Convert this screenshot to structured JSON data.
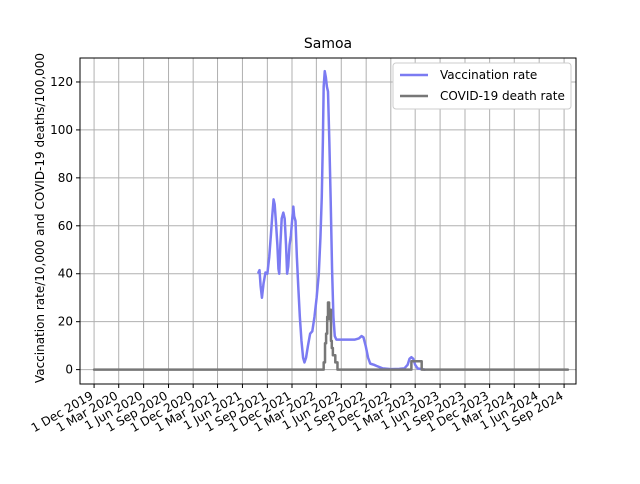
{
  "chart_data": {
    "type": "line",
    "title": "Samoa",
    "xlabel": "",
    "ylabel": "Vaccination rate/10,000 and COVID-19 deaths/100,000",
    "x_type": "date",
    "xlim": [
      "2019-10-10",
      "2024-10-15"
    ],
    "ylim": [
      -6,
      130
    ],
    "yticks": [
      0,
      20,
      40,
      60,
      80,
      100,
      120
    ],
    "xticks": [
      {
        "date": "2019-12-01",
        "label": "1 Dec 2019"
      },
      {
        "date": "2020-03-01",
        "label": "1 Mar 2020"
      },
      {
        "date": "2020-06-01",
        "label": "1 Jun 2020"
      },
      {
        "date": "2020-09-01",
        "label": "1 Sep 2020"
      },
      {
        "date": "2020-12-01",
        "label": "1 Dec 2020"
      },
      {
        "date": "2021-03-01",
        "label": "1 Mar 2021"
      },
      {
        "date": "2021-06-01",
        "label": "1 Jun 2021"
      },
      {
        "date": "2021-09-01",
        "label": "1 Sep 2021"
      },
      {
        "date": "2021-12-01",
        "label": "1 Dec 2021"
      },
      {
        "date": "2022-03-01",
        "label": "1 Mar 2022"
      },
      {
        "date": "2022-06-01",
        "label": "1 Jun 2022"
      },
      {
        "date": "2022-09-01",
        "label": "1 Sep 2022"
      },
      {
        "date": "2022-12-01",
        "label": "1 Dec 2022"
      },
      {
        "date": "2023-03-01",
        "label": "1 Mar 2023"
      },
      {
        "date": "2023-06-01",
        "label": "1 Jun 2023"
      },
      {
        "date": "2023-09-01",
        "label": "1 Sep 2023"
      },
      {
        "date": "2023-12-01",
        "label": "1 Dec 2023"
      },
      {
        "date": "2024-03-01",
        "label": "1 Mar 2024"
      },
      {
        "date": "2024-06-01",
        "label": "1 Jun 2024"
      },
      {
        "date": "2024-09-01",
        "label": "1 Sep 2024"
      }
    ],
    "grid": true,
    "legend_position": "top-right",
    "series": [
      {
        "name": "Vaccination rate",
        "color": "#7b7bf2",
        "points": [
          [
            "2021-07-30",
            40.5
          ],
          [
            "2021-08-03",
            41.5
          ],
          [
            "2021-08-07",
            35
          ],
          [
            "2021-08-12",
            30
          ],
          [
            "2021-08-18",
            36
          ],
          [
            "2021-08-25",
            40.5
          ],
          [
            "2021-09-01",
            40
          ],
          [
            "2021-09-08",
            47
          ],
          [
            "2021-09-14",
            56
          ],
          [
            "2021-09-19",
            64
          ],
          [
            "2021-09-24",
            71
          ],
          [
            "2021-09-28",
            69
          ],
          [
            "2021-10-03",
            61
          ],
          [
            "2021-10-08",
            52
          ],
          [
            "2021-10-12",
            42
          ],
          [
            "2021-10-15",
            40
          ],
          [
            "2021-10-19",
            52
          ],
          [
            "2021-10-24",
            63
          ],
          [
            "2021-10-30",
            65.5
          ],
          [
            "2021-11-04",
            63
          ],
          [
            "2021-11-09",
            52
          ],
          [
            "2021-11-13",
            40
          ],
          [
            "2021-11-17",
            43
          ],
          [
            "2021-11-22",
            52
          ],
          [
            "2021-11-27",
            56
          ],
          [
            "2021-12-02",
            63
          ],
          [
            "2021-12-06",
            68
          ],
          [
            "2021-12-09",
            64
          ],
          [
            "2021-12-14",
            62
          ],
          [
            "2021-12-19",
            47
          ],
          [
            "2021-12-24",
            35
          ],
          [
            "2021-12-30",
            22
          ],
          [
            "2022-01-05",
            12
          ],
          [
            "2022-01-11",
            5
          ],
          [
            "2022-01-16",
            3
          ],
          [
            "2022-01-22",
            5
          ],
          [
            "2022-01-29",
            10
          ],
          [
            "2022-02-06",
            15
          ],
          [
            "2022-02-14",
            16
          ],
          [
            "2022-02-22",
            22
          ],
          [
            "2022-03-02",
            30
          ],
          [
            "2022-03-10",
            40
          ],
          [
            "2022-03-16",
            55
          ],
          [
            "2022-03-21",
            72
          ],
          [
            "2022-03-25",
            95
          ],
          [
            "2022-03-28",
            118
          ],
          [
            "2022-04-01",
            124.5
          ],
          [
            "2022-04-05",
            122
          ],
          [
            "2022-04-09",
            118
          ],
          [
            "2022-04-13",
            116
          ],
          [
            "2022-04-18",
            95
          ],
          [
            "2022-04-23",
            70
          ],
          [
            "2022-04-28",
            42
          ],
          [
            "2022-05-03",
            22
          ],
          [
            "2022-05-08",
            14
          ],
          [
            "2022-05-14",
            12.5
          ],
          [
            "2022-05-24",
            12.5
          ],
          [
            "2022-06-10",
            12.5
          ],
          [
            "2022-07-01",
            12.5
          ],
          [
            "2022-07-20",
            12.5
          ],
          [
            "2022-08-05",
            13
          ],
          [
            "2022-08-15",
            14
          ],
          [
            "2022-08-22",
            13.5
          ],
          [
            "2022-08-30",
            10
          ],
          [
            "2022-09-08",
            5
          ],
          [
            "2022-09-16",
            2.5
          ],
          [
            "2022-09-30",
            2
          ],
          [
            "2022-10-10",
            1.5
          ],
          [
            "2022-11-01",
            0.5
          ],
          [
            "2022-12-01",
            0.2
          ],
          [
            "2023-01-01",
            0.3
          ],
          [
            "2023-01-20",
            0.5
          ],
          [
            "2023-02-01",
            2
          ],
          [
            "2023-02-08",
            4.5
          ],
          [
            "2023-02-15",
            5.2
          ],
          [
            "2023-02-22",
            4.5
          ],
          [
            "2023-03-01",
            2
          ],
          [
            "2023-03-10",
            0.5
          ],
          [
            "2023-04-05",
            0
          ]
        ]
      },
      {
        "name": "COVID-19 death rate",
        "color": "#777777",
        "points": [
          [
            "2019-12-01",
            0
          ],
          [
            "2022-03-28",
            0
          ],
          [
            "2022-03-28",
            3
          ],
          [
            "2022-04-02",
            3
          ],
          [
            "2022-04-02",
            11
          ],
          [
            "2022-04-06",
            11
          ],
          [
            "2022-04-06",
            15
          ],
          [
            "2022-04-10",
            15
          ],
          [
            "2022-04-10",
            22
          ],
          [
            "2022-04-13",
            22
          ],
          [
            "2022-04-13",
            28
          ],
          [
            "2022-04-17",
            28
          ],
          [
            "2022-04-17",
            21
          ],
          [
            "2022-04-20",
            21
          ],
          [
            "2022-04-20",
            25
          ],
          [
            "2022-04-24",
            25
          ],
          [
            "2022-04-24",
            12
          ],
          [
            "2022-04-27",
            12
          ],
          [
            "2022-04-27",
            9
          ],
          [
            "2022-05-01",
            9
          ],
          [
            "2022-05-01",
            6
          ],
          [
            "2022-05-10",
            6
          ],
          [
            "2022-05-10",
            3
          ],
          [
            "2022-05-18",
            3
          ],
          [
            "2022-05-18",
            0
          ],
          [
            "2023-02-15",
            0
          ],
          [
            "2023-02-15",
            3.5
          ],
          [
            "2023-03-25",
            3.5
          ],
          [
            "2023-03-25",
            0
          ],
          [
            "2024-09-15",
            0
          ]
        ]
      }
    ]
  }
}
